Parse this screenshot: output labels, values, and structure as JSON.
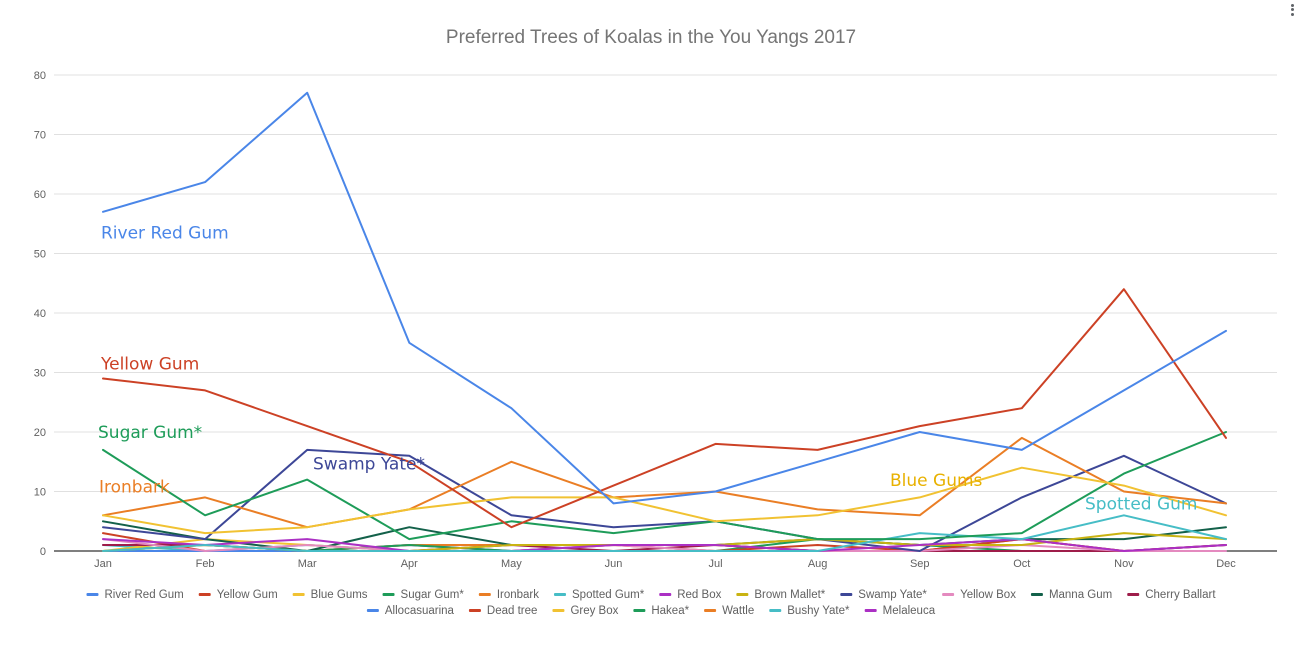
{
  "chart_data": {
    "type": "line",
    "title": "Preferred Trees of Koalas in the You Yangs 2017",
    "xlabel": "",
    "ylabel": "",
    "categories": [
      "Jan",
      "Feb",
      "Mar",
      "Apr",
      "May",
      "Jun",
      "Jul",
      "Aug",
      "Sep",
      "Oct",
      "Nov",
      "Dec"
    ],
    "ylim": [
      0,
      80
    ],
    "yticks": [
      0,
      10,
      20,
      30,
      40,
      50,
      60,
      70,
      80
    ],
    "grid": true,
    "legend_position": "bottom",
    "series": [
      {
        "name": "River Red Gum",
        "color": "#4a86e8",
        "values": [
          57,
          62,
          77,
          35,
          24,
          8,
          10,
          15,
          20,
          17,
          27,
          37
        ]
      },
      {
        "name": "Yellow Gum",
        "color": "#cc4125",
        "values": [
          29,
          27,
          21,
          15,
          4,
          11,
          18,
          17,
          21,
          24,
          44,
          19
        ]
      },
      {
        "name": "Blue Gums",
        "color": "#f1c232",
        "values": [
          6,
          3,
          4,
          7,
          9,
          9,
          5,
          6,
          9,
          14,
          11,
          6
        ]
      },
      {
        "name": "Sugar Gum*",
        "color": "#1e9c59",
        "values": [
          17,
          6,
          12,
          2,
          5,
          3,
          5,
          2,
          2,
          3,
          13,
          20
        ]
      },
      {
        "name": "Ironbark",
        "color": "#ea7e25",
        "values": [
          6,
          9,
          4,
          7,
          15,
          9,
          10,
          7,
          6,
          19,
          10,
          8
        ]
      },
      {
        "name": "Spotted Gum*",
        "color": "#46bdc6",
        "values": [
          0,
          1,
          0,
          0,
          0,
          0,
          0,
          0,
          3,
          2,
          6,
          2
        ]
      },
      {
        "name": "Red Box",
        "color": "#ab30c4",
        "values": [
          2,
          1,
          2,
          0,
          0,
          1,
          1,
          0,
          1,
          2,
          0,
          1
        ]
      },
      {
        "name": "Brown Mallet*",
        "color": "#c9b312",
        "values": [
          0,
          1,
          0,
          0,
          1,
          1,
          1,
          2,
          1,
          1,
          3,
          2
        ]
      },
      {
        "name": "Swamp Yate*",
        "color": "#3d4797",
        "values": [
          4,
          2,
          17,
          16,
          6,
          4,
          5,
          2,
          0,
          9,
          16,
          8
        ]
      },
      {
        "name": "Yellow Box",
        "color": "#e48abf",
        "values": [
          2,
          0,
          1,
          0,
          0,
          1,
          0,
          0,
          0,
          1,
          0,
          0
        ]
      },
      {
        "name": "Manna Gum",
        "color": "#13614a",
        "values": [
          5,
          2,
          0,
          4,
          1,
          1,
          1,
          2,
          1,
          2,
          2,
          4
        ]
      },
      {
        "name": "Cherry Ballart",
        "color": "#9e1d4a",
        "values": [
          1,
          1,
          0,
          0,
          1,
          0,
          1,
          0,
          0,
          0,
          0,
          1
        ]
      },
      {
        "name": "Allocasuarina",
        "color": "#4a86e8",
        "values": [
          0,
          0,
          0,
          0,
          0,
          0,
          0,
          0,
          0,
          0,
          0,
          0
        ]
      },
      {
        "name": "Dead tree",
        "color": "#cc4125",
        "values": [
          3,
          0,
          0,
          0,
          0,
          1,
          0,
          1,
          0,
          2,
          0,
          1
        ]
      },
      {
        "name": "Grey Box",
        "color": "#f1c232",
        "values": [
          0,
          2,
          1,
          0,
          0,
          0,
          0,
          0,
          0,
          0,
          0,
          0
        ]
      },
      {
        "name": "Hakea*",
        "color": "#1e9c59",
        "values": [
          0,
          0,
          0,
          1,
          0,
          0,
          0,
          2,
          1,
          0,
          0,
          0
        ]
      },
      {
        "name": "Wattle",
        "color": "#ea7e25",
        "values": [
          0,
          1,
          0,
          1,
          1,
          1,
          1,
          0,
          0,
          2,
          0,
          0
        ]
      },
      {
        "name": "Bushy Yate*",
        "color": "#46bdc6",
        "values": [
          1,
          0,
          1,
          0,
          0,
          0,
          0,
          0,
          0,
          0,
          0,
          0
        ]
      },
      {
        "name": "Melaleuca",
        "color": "#ab30c4",
        "values": [
          0,
          0,
          0,
          1,
          0,
          0,
          0,
          0,
          0,
          0,
          0,
          0
        ]
      }
    ],
    "annotations": [
      {
        "text": "River Red Gum",
        "color": "#4a86e8"
      },
      {
        "text": "Yellow Gum",
        "color": "#cc4125"
      },
      {
        "text": "Sugar Gum*",
        "color": "#1e9c59"
      },
      {
        "text": "Ironbark",
        "color": "#ea7e25"
      },
      {
        "text": "Swamp Yate*",
        "color": "#3d4797"
      },
      {
        "text": "Blue Gums",
        "color": "#e8b100"
      },
      {
        "text": "Spotted Gum",
        "color": "#46bdc6"
      }
    ]
  },
  "menu": {
    "icon": "more-vert-icon"
  }
}
